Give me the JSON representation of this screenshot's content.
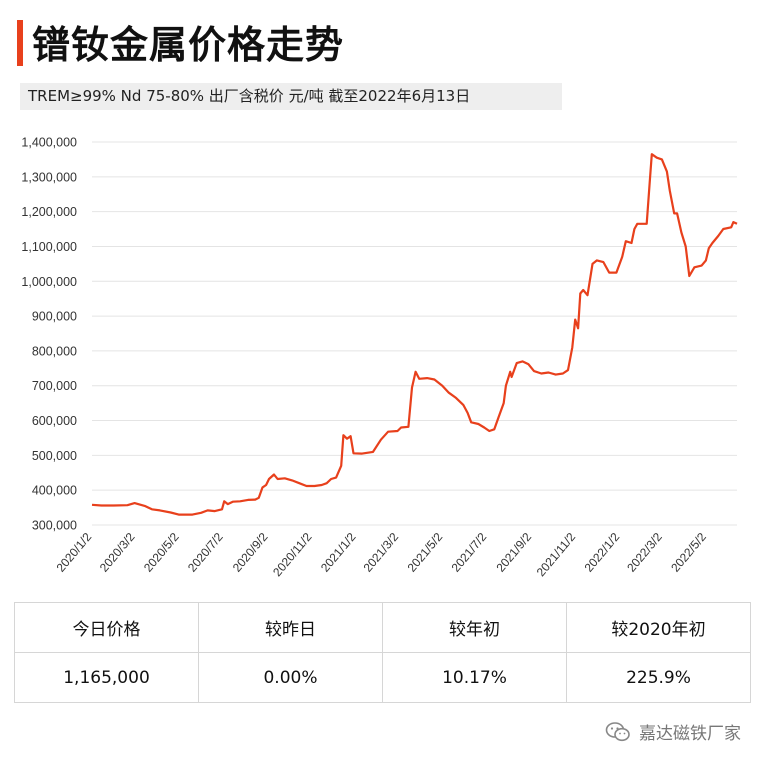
{
  "title": "镨钕金属价格走势",
  "subtitle": "TREM≥99% Nd 75-80%  出厂含税价 元/吨  截至2022年6月13日",
  "accent_color": "#e8401c",
  "line_color": "#e8401c",
  "chart_data": {
    "type": "line",
    "title": "",
    "xlabel": "",
    "ylabel": "",
    "grid": true,
    "ylim": [
      300000,
      1400000
    ],
    "y_ticks": [
      300000,
      400000,
      500000,
      600000,
      700000,
      800000,
      900000,
      1000000,
      1100000,
      1200000,
      1300000,
      1400000
    ],
    "y_tick_labels": [
      "300,000",
      "400,000",
      "500,000",
      "600,000",
      "700,000",
      "800,000",
      "900,000",
      "1,000,000",
      "1,100,000",
      "1,200,000",
      "1,300,000",
      "1,400,000"
    ],
    "x_tick_labels": [
      "2020/1/2",
      "2020/3/2",
      "2020/5/2",
      "2020/7/2",
      "2020/9/2",
      "2020/11/2",
      "2021/1/2",
      "2021/3/2",
      "2021/5/2",
      "2021/7/2",
      "2021/9/2",
      "2021/11/2",
      "2022/1/2",
      "2022/3/2",
      "2022/5/2"
    ],
    "x_range": [
      "2020/1/2",
      "2022/6/13"
    ],
    "series": [
      {
        "points": [
          [
            "2020/1/2",
            358000
          ],
          [
            "2020/1/15",
            356000
          ],
          [
            "2020/2/1",
            356000
          ],
          [
            "2020/2/20",
            357000
          ],
          [
            "2020/3/1",
            363000
          ],
          [
            "2020/3/15",
            355000
          ],
          [
            "2020/3/25",
            345000
          ],
          [
            "2020/4/5",
            342000
          ],
          [
            "2020/4/20",
            336000
          ],
          [
            "2020/5/1",
            330000
          ],
          [
            "2020/5/20",
            330000
          ],
          [
            "2020/6/1",
            335000
          ],
          [
            "2020/6/10",
            342000
          ],
          [
            "2020/6/20",
            340000
          ],
          [
            "2020/6/30",
            345000
          ],
          [
            "2020/7/3",
            368000
          ],
          [
            "2020/7/8",
            360000
          ],
          [
            "2020/7/15",
            367000
          ],
          [
            "2020/7/25",
            368000
          ],
          [
            "2020/8/5",
            372000
          ],
          [
            "2020/8/15",
            373000
          ],
          [
            "2020/8/20",
            378000
          ],
          [
            "2020/8/25",
            408000
          ],
          [
            "2020/8/30",
            415000
          ],
          [
            "2020/9/3",
            432000
          ],
          [
            "2020/9/10",
            445000
          ],
          [
            "2020/9/15",
            432000
          ],
          [
            "2020/9/25",
            434000
          ],
          [
            "2020/10/5",
            428000
          ],
          [
            "2020/10/15",
            420000
          ],
          [
            "2020/10/25",
            412000
          ],
          [
            "2020/11/5",
            412000
          ],
          [
            "2020/11/15",
            415000
          ],
          [
            "2020/11/22",
            420000
          ],
          [
            "2020/11/28",
            432000
          ],
          [
            "2020/12/5",
            436000
          ],
          [
            "2020/12/12",
            470000
          ],
          [
            "2020/12/15",
            558000
          ],
          [
            "2020/12/20",
            548000
          ],
          [
            "2020/12/25",
            555000
          ],
          [
            "2020/12/29",
            506000
          ],
          [
            "2021/1/10",
            505000
          ],
          [
            "2021/1/25",
            510000
          ],
          [
            "2021/2/5",
            545000
          ],
          [
            "2021/2/15",
            568000
          ],
          [
            "2021/2/28",
            570000
          ],
          [
            "2021/3/5",
            580000
          ],
          [
            "2021/3/15",
            582000
          ],
          [
            "2021/3/20",
            695000
          ],
          [
            "2021/3/25",
            740000
          ],
          [
            "2021/3/30",
            720000
          ],
          [
            "2021/4/10",
            722000
          ],
          [
            "2021/4/20",
            718000
          ],
          [
            "2021/5/1",
            700000
          ],
          [
            "2021/5/10",
            680000
          ],
          [
            "2021/5/20",
            665000
          ],
          [
            "2021/5/30",
            645000
          ],
          [
            "2021/6/5",
            622000
          ],
          [
            "2021/6/10",
            595000
          ],
          [
            "2021/6/20",
            590000
          ],
          [
            "2021/6/28",
            580000
          ],
          [
            "2021/7/5",
            570000
          ],
          [
            "2021/7/12",
            575000
          ],
          [
            "2021/7/18",
            610000
          ],
          [
            "2021/7/25",
            650000
          ],
          [
            "2021/7/28",
            700000
          ],
          [
            "2021/8/3",
            740000
          ],
          [
            "2021/8/5",
            725000
          ],
          [
            "2021/8/12",
            765000
          ],
          [
            "2021/8/20",
            770000
          ],
          [
            "2021/8/28",
            762000
          ],
          [
            "2021/9/5",
            742000
          ],
          [
            "2021/9/15",
            735000
          ],
          [
            "2021/9/25",
            738000
          ],
          [
            "2021/10/5",
            732000
          ],
          [
            "2021/10/15",
            735000
          ],
          [
            "2021/10/22",
            745000
          ],
          [
            "2021/10/28",
            810000
          ],
          [
            "2021/11/1",
            890000
          ],
          [
            "2021/11/5",
            865000
          ],
          [
            "2021/11/8",
            965000
          ],
          [
            "2021/11/12",
            975000
          ],
          [
            "2021/11/18",
            960000
          ],
          [
            "2021/11/25",
            1050000
          ],
          [
            "2021/12/1",
            1060000
          ],
          [
            "2021/12/10",
            1055000
          ],
          [
            "2021/12/18",
            1025000
          ],
          [
            "2021/12/28",
            1025000
          ],
          [
            "2022/1/5",
            1070000
          ],
          [
            "2022/1/10",
            1115000
          ],
          [
            "2022/1/18",
            1110000
          ],
          [
            "2022/1/22",
            1150000
          ],
          [
            "2022/1/26",
            1165000
          ],
          [
            "2022/2/8",
            1165000
          ],
          [
            "2022/2/12",
            1280000
          ],
          [
            "2022/2/15",
            1365000
          ],
          [
            "2022/2/22",
            1355000
          ],
          [
            "2022/3/1",
            1350000
          ],
          [
            "2022/3/8",
            1315000
          ],
          [
            "2022/3/12",
            1260000
          ],
          [
            "2022/3/18",
            1195000
          ],
          [
            "2022/3/22",
            1195000
          ],
          [
            "2022/3/28",
            1140000
          ],
          [
            "2022/4/3",
            1100000
          ],
          [
            "2022/4/8",
            1015000
          ],
          [
            "2022/4/15",
            1040000
          ],
          [
            "2022/4/25",
            1045000
          ],
          [
            "2022/5/1",
            1060000
          ],
          [
            "2022/5/5",
            1095000
          ],
          [
            "2022/5/10",
            1110000
          ],
          [
            "2022/5/18",
            1130000
          ],
          [
            "2022/5/25",
            1150000
          ],
          [
            "2022/6/5",
            1155000
          ],
          [
            "2022/6/8",
            1170000
          ],
          [
            "2022/6/13",
            1165000
          ]
        ]
      }
    ]
  },
  "stats_table": {
    "headers": [
      "今日价格",
      "较昨日",
      "较年初",
      "较2020年初"
    ],
    "values": [
      "1,165,000",
      "0.00%",
      "10.17%",
      "225.9%"
    ]
  },
  "footer": {
    "icon": "wechat-icon",
    "label": "嘉达磁铁厂家"
  }
}
